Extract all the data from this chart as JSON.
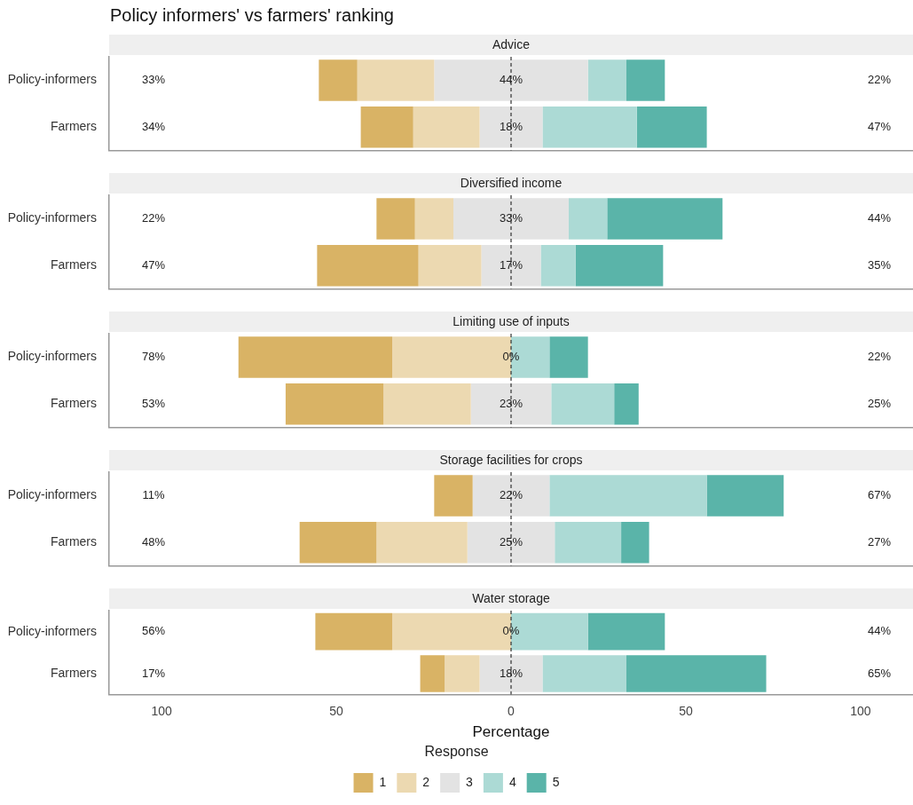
{
  "chart_data": [
    {
      "type": "bar",
      "orientation": "horizontal",
      "title": "Policy informers' vs farmers' ranking",
      "subtitle": "Advice",
      "categories": [
        "Policy-informers",
        "Farmers"
      ],
      "xlim": [
        -115,
        115
      ],
      "tick_labels": "y",
      "grid": false,
      "legend": false,
      "series": [
        {
          "color": "#d9b365",
          "base": [
            -55,
            -43
          ],
          "values": [
            11,
            15
          ]
        },
        {
          "color": "#ecd9b1",
          "base": [
            -44,
            -28
          ],
          "values": [
            22,
            19
          ]
        },
        {
          "color": "#e3e3e3",
          "base": [
            -22,
            -9
          ],
          "values": [
            44,
            18
          ]
        },
        {
          "color": "#acdad5",
          "base": [
            22,
            9
          ],
          "values": [
            11,
            27
          ]
        },
        {
          "color": "#5ab4a9",
          "base": [
            33,
            36
          ],
          "values": [
            11,
            20
          ]
        }
      ],
      "annotations": [
        "33%",
        "44%",
        "22%",
        "34%",
        "18%",
        "47%"
      ],
      "ref_lines": [
        {
          "axis": "x",
          "value": 0,
          "color": "#333333",
          "line_style": "dashed"
        }
      ]
    },
    {
      "type": "bar",
      "orientation": "horizontal",
      "subtitle": "Diversified income",
      "categories": [
        "Policy-informers",
        "Farmers"
      ],
      "xlim": [
        -115,
        115
      ],
      "tick_labels": "y",
      "grid": false,
      "legend": false,
      "series": [
        {
          "color": "#d9b365",
          "base": [
            -38.5,
            -55.5
          ],
          "values": [
            11,
            29
          ]
        },
        {
          "color": "#ecd9b1",
          "base": [
            -27.5,
            -26.5
          ],
          "values": [
            11,
            18
          ]
        },
        {
          "color": "#e3e3e3",
          "base": [
            -16.5,
            -8.5
          ],
          "values": [
            33,
            17
          ]
        },
        {
          "color": "#acdad5",
          "base": [
            16.5,
            8.5
          ],
          "values": [
            11,
            10
          ]
        },
        {
          "color": "#5ab4a9",
          "base": [
            27.5,
            18.5
          ],
          "values": [
            33,
            25
          ]
        }
      ],
      "annotations": [
        "22%",
        "33%",
        "44%",
        "47%",
        "17%",
        "35%"
      ],
      "ref_lines": [
        {
          "axis": "x",
          "value": 0,
          "color": "#333333",
          "line_style": "dashed"
        }
      ]
    },
    {
      "type": "bar",
      "orientation": "horizontal",
      "subtitle": "Limiting use of inputs",
      "categories": [
        "Policy-informers",
        "Farmers"
      ],
      "xlim": [
        -115,
        115
      ],
      "tick_labels": "y",
      "grid": false,
      "legend": false,
      "series": [
        {
          "color": "#d9b365",
          "base": [
            -78,
            -64.5
          ],
          "values": [
            44,
            28
          ]
        },
        {
          "color": "#ecd9b1",
          "base": [
            -34,
            -36.5
          ],
          "values": [
            34,
            25
          ]
        },
        {
          "color": "#e3e3e3",
          "base": [
            null,
            -11.5
          ],
          "values": [
            0,
            23
          ]
        },
        {
          "color": "#acdad5",
          "base": [
            0,
            11.5
          ],
          "values": [
            11,
            18
          ]
        },
        {
          "color": "#5ab4a9",
          "base": [
            11,
            29.5
          ],
          "values": [
            11,
            7
          ]
        }
      ],
      "annotations": [
        "78%",
        "0%",
        "22%",
        "53%",
        "23%",
        "25%"
      ],
      "ref_lines": [
        {
          "axis": "x",
          "value": 0,
          "color": "#333333",
          "line_style": "dashed"
        }
      ]
    },
    {
      "type": "bar",
      "orientation": "horizontal",
      "subtitle": "Storage facilities for crops",
      "categories": [
        "Policy-informers",
        "Farmers"
      ],
      "xlim": [
        -115,
        115
      ],
      "tick_labels": "y",
      "grid": false,
      "legend": false,
      "series": [
        {
          "color": "#d9b365",
          "base": [
            -22,
            -60.5
          ],
          "values": [
            11,
            22
          ]
        },
        {
          "color": "#ecd9b1",
          "base": [
            null,
            -38.5
          ],
          "values": [
            0,
            26
          ]
        },
        {
          "color": "#e3e3e3",
          "base": [
            -11,
            -12.5
          ],
          "values": [
            22,
            25
          ]
        },
        {
          "color": "#acdad5",
          "base": [
            11,
            12.5
          ],
          "values": [
            45,
            19
          ]
        },
        {
          "color": "#5ab4a9",
          "base": [
            56,
            31.5
          ],
          "values": [
            22,
            8
          ]
        }
      ],
      "annotations": [
        "11%",
        "22%",
        "67%",
        "48%",
        "25%",
        "27%"
      ],
      "ref_lines": [
        {
          "axis": "x",
          "value": 0,
          "color": "#333333",
          "line_style": "dashed"
        }
      ]
    },
    {
      "type": "bar",
      "orientation": "horizontal",
      "subtitle": "Water storage",
      "xlabel": "Percentage",
      "legend_title": "Response",
      "categories": [
        "Policy-informers",
        "Farmers"
      ],
      "xlim": [
        -115,
        115
      ],
      "xticks": [
        {
          "value": -100,
          "label": "100"
        },
        {
          "value": -50,
          "label": "50"
        },
        0,
        50,
        100
      ],
      "grid": false,
      "legend": "bottom",
      "series": [
        {
          "name": "1",
          "color": "#d9b365",
          "base": [
            -56,
            -26
          ],
          "values": [
            22,
            7
          ]
        },
        {
          "name": "2",
          "color": "#ecd9b1",
          "base": [
            -34,
            -19
          ],
          "values": [
            34,
            10
          ]
        },
        {
          "name": "3",
          "color": "#e3e3e3",
          "base": [
            null,
            -9
          ],
          "values": [
            0,
            18
          ]
        },
        {
          "name": "4",
          "color": "#acdad5",
          "base": [
            0,
            9
          ],
          "values": [
            22,
            24
          ]
        },
        {
          "name": "5",
          "color": "#5ab4a9",
          "base": [
            22,
            33
          ],
          "values": [
            22,
            40
          ]
        }
      ],
      "annotations": [
        "56%",
        "0%",
        "44%",
        "17%",
        "18%",
        "65%"
      ],
      "ref_lines": [
        {
          "axis": "x",
          "value": 0,
          "color": "#333333",
          "line_style": "dashed"
        }
      ]
    }
  ]
}
